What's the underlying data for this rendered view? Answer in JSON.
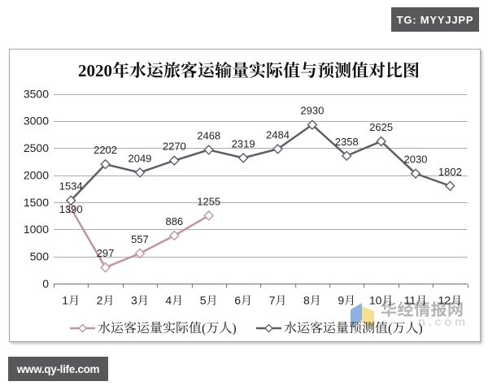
{
  "page": {
    "background": "#ffffff"
  },
  "badges": {
    "tg_label": "TG: MYYJJPP",
    "site_label": "www.qy-life.com",
    "background": "#58585b",
    "text_color": "#ffffff"
  },
  "watermark": {
    "brand": "华经情报网",
    "domain": "n.com",
    "brand_color": "#b3b3b3",
    "domain_color": "#dadada",
    "logo_blue": "#79a3dc",
    "logo_yellow": "#f7dc81"
  },
  "chart_data": {
    "type": "line",
    "title": "2020年水运旅客运输量实际值与预测值对比图",
    "categories": [
      "1月",
      "2月",
      "3月",
      "4月",
      "5月",
      "6月",
      "7月",
      "8月",
      "9月",
      "10月",
      "11月",
      "12月"
    ],
    "series": [
      {
        "name": "水运客运量实际值(万人)",
        "color": "#c3949c",
        "values": [
          1390,
          297,
          557,
          886,
          1255,
          null,
          null,
          null,
          null,
          null,
          null,
          null
        ],
        "label_position": [
          "below",
          "above",
          "above",
          "above",
          "above"
        ]
      },
      {
        "name": "水运客运量预测值(万人)",
        "color": "#5c5f6d",
        "values": [
          1534,
          2202,
          2049,
          2270,
          2468,
          2319,
          2484,
          2930,
          2358,
          2625,
          2030,
          1802
        ]
      }
    ],
    "ylim": [
      0,
      3500
    ],
    "ytick_step": 500,
    "yticks": [
      "0",
      "500",
      "1000",
      "1500",
      "2000",
      "2500",
      "3000",
      "3500"
    ],
    "grid": true,
    "marker": "diamond",
    "legend_position": "bottom",
    "gridline_color": "#ababab",
    "axis_color": "#808080",
    "label_color": "#1f1f1f"
  }
}
